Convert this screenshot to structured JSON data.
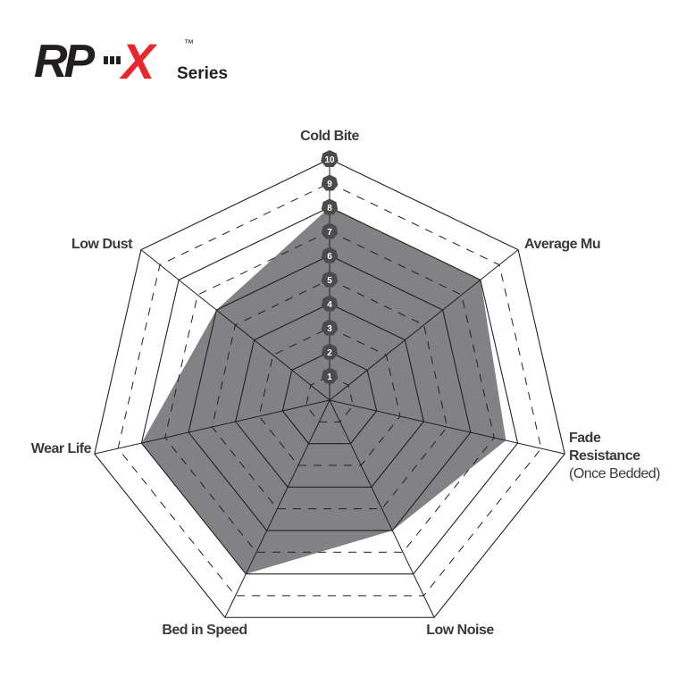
{
  "logo": {
    "text_main": "RP",
    "text_x": "X",
    "tm": "™",
    "series": "Series"
  },
  "colors": {
    "fill": "#828285",
    "badge": "#4b4b4e",
    "logo_red": "#e8262b",
    "logo_black": "#231f20",
    "line": "#231f20"
  },
  "chart_data": {
    "type": "radar",
    "axes": [
      "Cold Bite",
      "Average Mu",
      "Fade Resistance (Once Bedded)",
      "Low Noise",
      "Bed in Speed",
      "Wear Life",
      "Low Dust"
    ],
    "axis_label_lines": [
      [
        "Cold Bite"
      ],
      [
        "Average Mu"
      ],
      [
        "Fade",
        "Resistance",
        "(Once Bedded)"
      ],
      [
        "Low Noise"
      ],
      [
        "Bed in Speed"
      ],
      [
        "Wear Life"
      ],
      [
        "Low Dust"
      ]
    ],
    "values": [
      8,
      8,
      7.5,
      6,
      8,
      8,
      6
    ],
    "range": [
      0,
      10
    ],
    "ticks": [
      "1",
      "2",
      "3",
      "4",
      "5",
      "6",
      "7",
      "8",
      "9",
      "10"
    ],
    "grid": "alternating solid (even) and dashed (odd) heptagon rings"
  }
}
